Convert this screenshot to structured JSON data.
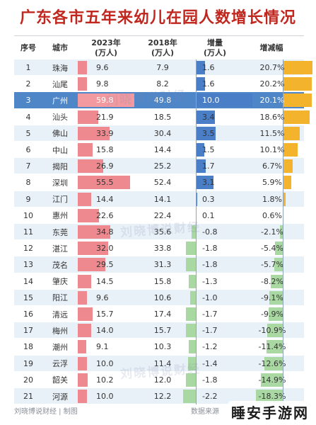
{
  "title": "广东各市五年来幼儿在园人数增长情况",
  "headers": {
    "rank": "序号",
    "city": "城市",
    "y2023": "2023年",
    "y2023_unit": "(万人)",
    "y2018": "2018年",
    "y2018_unit": "(万人)",
    "increase": "增量",
    "increase_unit": "(万人)",
    "rate": "增减幅"
  },
  "colors": {
    "title": "#c0281f",
    "bar_2023": "#ee8a8f",
    "increase_positive": "#4a7fc8",
    "increase_negative": "#a9d8a3",
    "rate_positive": "#f4b32d",
    "rate_negative": "#a9d8a3",
    "row_alt": "#e9f1f8",
    "row_highlight": "#4e86c8"
  },
  "highlight_city": "广州",
  "chart_data": {
    "type": "table",
    "title": "广东各市五年来幼儿在园人数增长情况",
    "columns": [
      "序号",
      "城市",
      "2023年(万人)",
      "2018年(万人)",
      "增量(万人)",
      "增减幅"
    ],
    "rows": [
      {
        "rank": "1",
        "city": "珠海",
        "v2023": 9.6,
        "v2018": 7.9,
        "increase": 1.6,
        "rate": 20.7
      },
      {
        "rank": "2",
        "city": "汕尾",
        "v2023": 9.8,
        "v2018": 8.2,
        "increase": 1.6,
        "rate": 20.2
      },
      {
        "rank": "3",
        "city": "广州",
        "v2023": 59.8,
        "v2018": 49.8,
        "increase": 10.0,
        "rate": 20.1
      },
      {
        "rank": "4",
        "city": "汕头",
        "v2023": 21.9,
        "v2018": 18.5,
        "increase": 3.4,
        "rate": 18.6
      },
      {
        "rank": "5",
        "city": "佛山",
        "v2023": 33.9,
        "v2018": 30.4,
        "increase": 3.5,
        "rate": 11.5
      },
      {
        "rank": "6",
        "city": "中山",
        "v2023": 15.8,
        "v2018": 14.4,
        "increase": 1.5,
        "rate": 10.1
      },
      {
        "rank": "7",
        "city": "揭阳",
        "v2023": 26.9,
        "v2018": 25.2,
        "increase": 1.7,
        "rate": 6.7
      },
      {
        "rank": "8",
        "city": "深圳",
        "v2023": 55.5,
        "v2018": 52.4,
        "increase": 3.1,
        "rate": 5.9
      },
      {
        "rank": "9",
        "city": "江门",
        "v2023": 14.4,
        "v2018": 14.1,
        "increase": 0.3,
        "rate": 1.8
      },
      {
        "rank": "10",
        "city": "惠州",
        "v2023": 22.6,
        "v2018": 22.4,
        "increase": 0.1,
        "rate": 0.6
      },
      {
        "rank": "11",
        "city": "东莞",
        "v2023": 34.8,
        "v2018": 35.6,
        "increase": -0.8,
        "rate": -2.1
      },
      {
        "rank": "12",
        "city": "湛江",
        "v2023": 32.0,
        "v2018": 33.8,
        "increase": -1.8,
        "rate": -5.4
      },
      {
        "rank": "13",
        "city": "茂名",
        "v2023": 29.5,
        "v2018": 31.3,
        "increase": -1.8,
        "rate": -5.7
      },
      {
        "rank": "14",
        "city": "肇庆",
        "v2023": 14.5,
        "v2018": 15.8,
        "increase": -1.3,
        "rate": -8.2
      },
      {
        "rank": "15",
        "city": "阳江",
        "v2023": 9.6,
        "v2018": 10.6,
        "increase": -1.0,
        "rate": -9.1
      },
      {
        "rank": "16",
        "city": "清远",
        "v2023": 15.7,
        "v2018": 17.4,
        "increase": -1.7,
        "rate": -9.9
      },
      {
        "rank": "17",
        "city": "梅州",
        "v2023": 14.0,
        "v2018": 15.7,
        "increase": -1.7,
        "rate": -10.9
      },
      {
        "rank": "18",
        "city": "潮州",
        "v2023": 9.1,
        "v2018": 10.3,
        "increase": -1.2,
        "rate": -11.4
      },
      {
        "rank": "19",
        "city": "云浮",
        "v2023": 10.0,
        "v2018": 11.4,
        "increase": -1.4,
        "rate": -12.6
      },
      {
        "rank": "20",
        "city": "韶关",
        "v2023": 10.2,
        "v2018": 12.0,
        "increase": -1.8,
        "rate": -14.9
      },
      {
        "rank": "21",
        "city": "河源",
        "v2023": 10.0,
        "v2018": 12.2,
        "increase": -2.2,
        "rate": -18.3
      }
    ]
  },
  "footer": {
    "left": "刘晓博说财经 | 制图",
    "right": "数据来源"
  },
  "logo_text": "睡安手游网",
  "watermark_text": "刘晓博说财经"
}
